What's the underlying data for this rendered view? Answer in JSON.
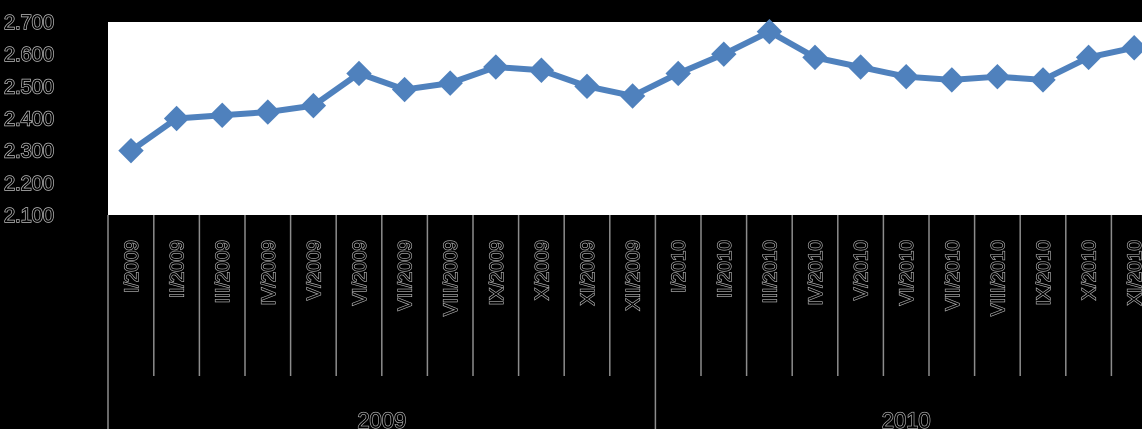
{
  "chart_data": {
    "type": "line",
    "title": "",
    "xlabel": "",
    "ylabel": "",
    "ylim": [
      2.1,
      2.7
    ],
    "y_ticks": [
      "2.700",
      "2.600",
      "2.500",
      "2.400",
      "2.300",
      "2.200",
      "2.100"
    ],
    "y_tick_values": [
      2.7,
      2.6,
      2.5,
      2.4,
      2.3,
      2.2,
      2.1
    ],
    "categories": [
      "I/2009",
      "II/2009",
      "III/2009",
      "IV/2009",
      "V/2009",
      "VI/2009",
      "VII/2009",
      "VIII/2009",
      "IX/2009",
      "X/2009",
      "XI/2009",
      "XII/2009",
      "I/2010",
      "II/2010",
      "III/2010",
      "IV/2010",
      "V/2010",
      "VI/2010",
      "VII/2010",
      "VIII/2010",
      "IX/2010",
      "X/2010",
      "XI/2010"
    ],
    "groups": [
      {
        "label": "2009",
        "count": 12
      },
      {
        "label": "2010",
        "count": 11
      }
    ],
    "series": [
      {
        "values": [
          2.3,
          2.4,
          2.41,
          2.42,
          2.44,
          2.54,
          2.49,
          2.51,
          2.56,
          2.55,
          2.5,
          2.47,
          2.54,
          2.6,
          2.67,
          2.59,
          2.56,
          2.53,
          2.52,
          2.53,
          2.52,
          2.59,
          2.62
        ],
        "color": "#4F81BD"
      }
    ],
    "grid": false
  }
}
